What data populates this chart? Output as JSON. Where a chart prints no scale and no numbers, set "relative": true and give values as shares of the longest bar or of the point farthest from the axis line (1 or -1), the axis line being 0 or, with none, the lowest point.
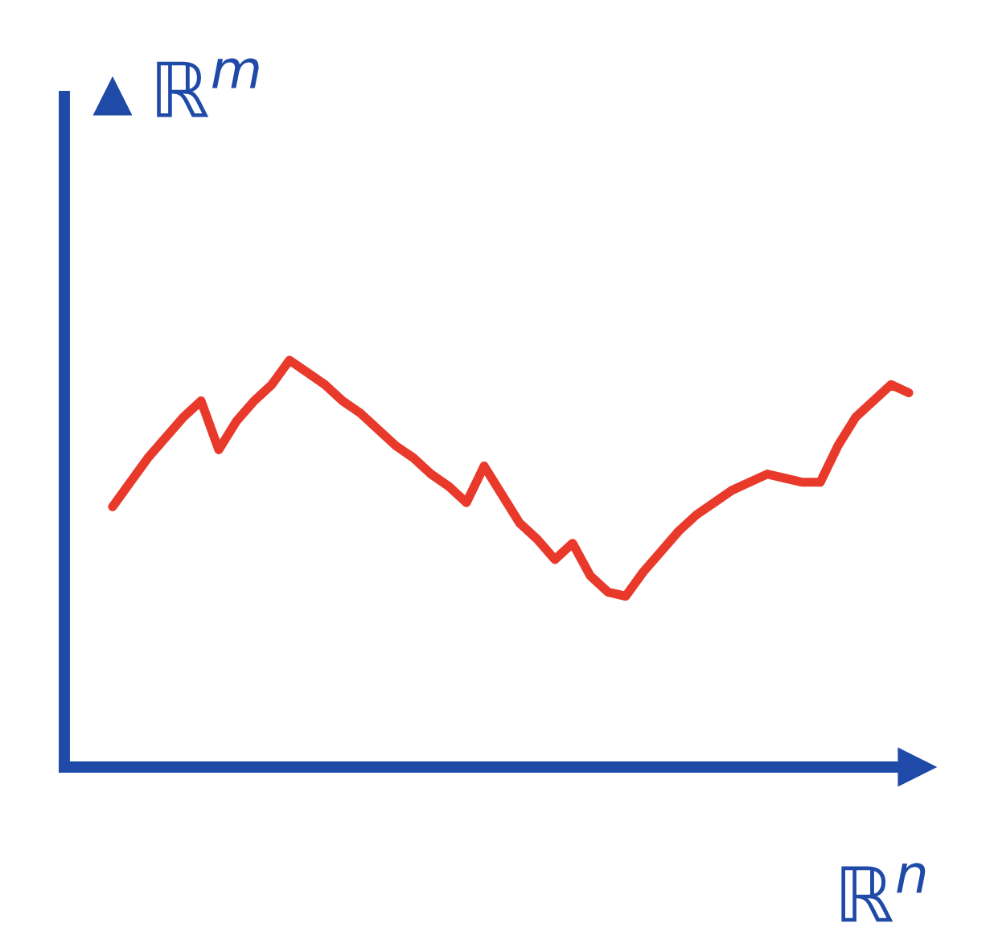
{
  "chart_data": {
    "type": "line",
    "relative": true,
    "xlabel": "ℝ$^{n}$",
    "ylabel": "ℝ$^{m}$",
    "color": "#e8392a",
    "categories": [
      null,
      null,
      null,
      null,
      null,
      null,
      null,
      null,
      null,
      null,
      null,
      null,
      null,
      null,
      null,
      null,
      null,
      null,
      null,
      null,
      null,
      null,
      null,
      null,
      null,
      null,
      null,
      null,
      null,
      null,
      null,
      null,
      null,
      null,
      null,
      null,
      null,
      null,
      null,
      null,
      null,
      null,
      null,
      null,
      null,
      null
    ],
    "values": [
      0.64,
      0.7,
      0.76,
      0.81,
      0.86,
      0.9,
      0.78,
      0.85,
      0.9,
      0.94,
      1,
      0.97,
      0.94,
      0.9,
      0.87,
      0.83,
      0.79,
      0.76,
      0.72,
      0.69,
      0.65,
      0.74,
      0.67,
      0.6,
      0.56,
      0.51,
      0.55,
      0.47,
      0.43,
      0.42,
      0.48,
      0.53,
      0.58,
      0.62,
      0.65,
      0.68,
      0.7,
      0.72,
      0.71,
      0.7,
      0.7,
      0.79,
      0.86,
      0.9,
      0.94,
      0.92
    ]
  }
}
